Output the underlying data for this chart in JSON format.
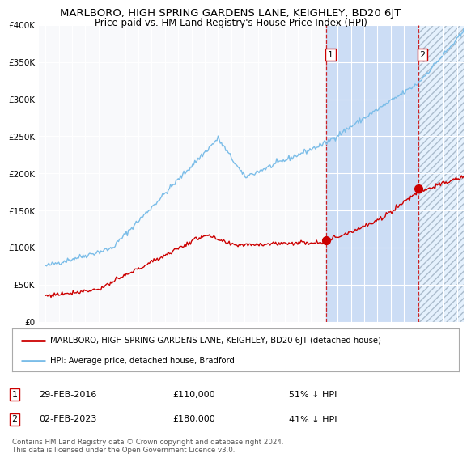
{
  "title": "MARLBORO, HIGH SPRING GARDENS LANE, KEIGHLEY, BD20 6JT",
  "subtitle": "Price paid vs. HM Land Registry's House Price Index (HPI)",
  "title_fontsize": 9.5,
  "subtitle_fontsize": 8.5,
  "hpi_color": "#7bbde8",
  "price_color": "#cc0000",
  "chart_bg": "#f0f4ff",
  "ylim": [
    0,
    400000
  ],
  "yticks": [
    0,
    50000,
    100000,
    150000,
    200000,
    250000,
    300000,
    350000,
    400000
  ],
  "ytick_labels": [
    "£0",
    "£50K",
    "£100K",
    "£150K",
    "£200K",
    "£250K",
    "£300K",
    "£350K",
    "£400K"
  ],
  "sale1_date": 2016.16,
  "sale1_price": 110000,
  "sale1_label": "1",
  "sale2_date": 2023.09,
  "sale2_price": 180000,
  "sale2_label": "2",
  "legend_line1": "MARLBORO, HIGH SPRING GARDENS LANE, KEIGHLEY, BD20 6JT (detached house)",
  "legend_line2": "HPI: Average price, detached house, Bradford",
  "footnote": "Contains HM Land Registry data © Crown copyright and database right 2024.\nThis data is licensed under the Open Government Licence v3.0.",
  "xstart": 1994.5,
  "xend": 2026.5
}
